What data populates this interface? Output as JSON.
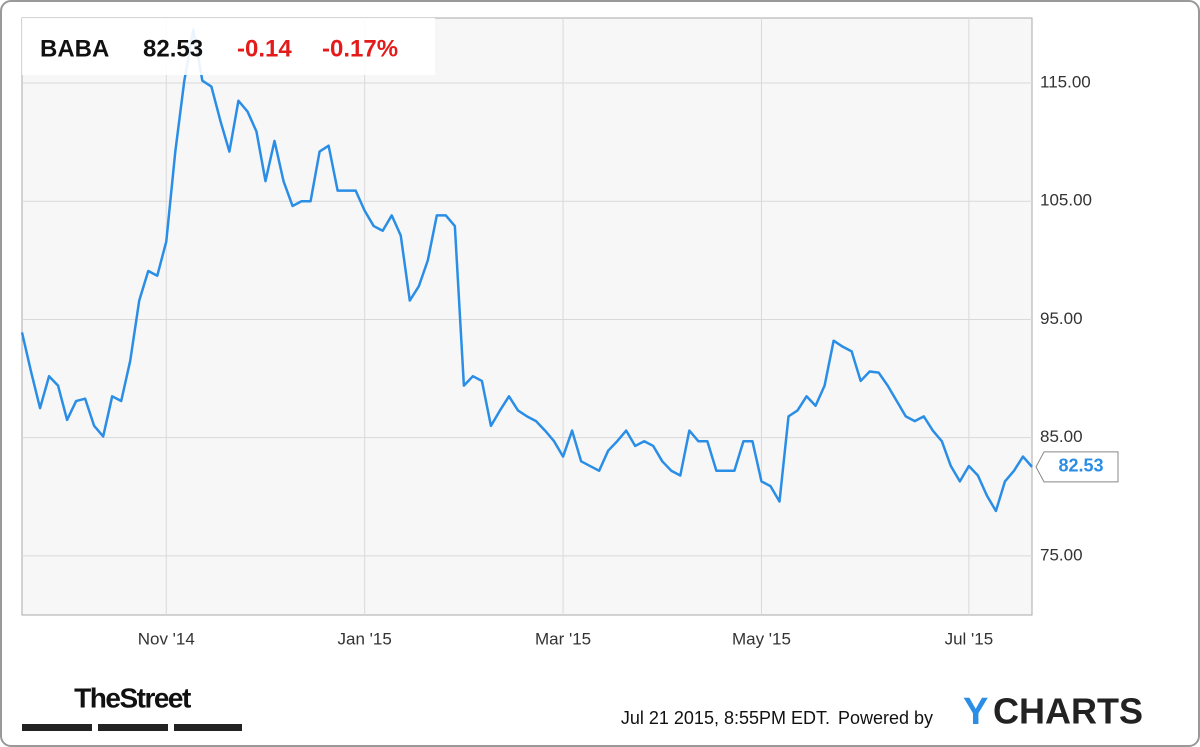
{
  "chart_data": {
    "type": "line",
    "header": {
      "ticker": "BABA",
      "price": "82.53",
      "change": "-0.14",
      "change_percent": "-0.17%"
    },
    "values": [
      93.9,
      90.6,
      87.5,
      90.2,
      89.4,
      86.5,
      88.1,
      88.3,
      86.0,
      85.1,
      88.5,
      88.1,
      91.5,
      96.6,
      99.1,
      98.7,
      101.6,
      109.2,
      115.2,
      119.5,
      115.2,
      114.7,
      111.8,
      109.2,
      113.5,
      112.6,
      110.9,
      106.7,
      110.1,
      106.7,
      104.6,
      105.0,
      105.0,
      109.2,
      109.7,
      105.9,
      105.9,
      105.9,
      104.2,
      102.9,
      102.5,
      103.8,
      102.1,
      96.6,
      97.8,
      100.0,
      103.8,
      103.8,
      102.9,
      89.4,
      90.2,
      89.8,
      86.0,
      87.3,
      88.5,
      87.3,
      86.8,
      86.4,
      85.6,
      84.7,
      83.4,
      85.6,
      83.0,
      82.6,
      82.2,
      83.9,
      84.7,
      85.6,
      84.3,
      84.7,
      84.3,
      83.0,
      82.2,
      81.8,
      85.6,
      84.7,
      84.7,
      82.2,
      82.2,
      82.2,
      84.7,
      84.7,
      81.3,
      80.9,
      79.6,
      86.8,
      87.3,
      88.5,
      87.7,
      89.4,
      93.2,
      92.7,
      92.3,
      89.8,
      90.6,
      90.5,
      89.4,
      88.1,
      86.8,
      86.4,
      86.8,
      85.6,
      84.7,
      82.6,
      81.3,
      82.6,
      81.8,
      80.1,
      78.8,
      81.3,
      82.2,
      83.4,
      82.53
    ],
    "color": "#2a8ee6",
    "xlim": [
      0,
      112
    ],
    "xticks": [
      {
        "value": 16,
        "label": "Nov '14"
      },
      {
        "value": 38,
        "label": "Jan '15"
      },
      {
        "value": 60,
        "label": "Mar '15"
      },
      {
        "value": 82,
        "label": "May '15"
      },
      {
        "value": 105,
        "label": "Jul '15"
      }
    ],
    "ylim": [
      70,
      120.5
    ],
    "yticks": [
      {
        "value": 75,
        "label": "75.00"
      },
      {
        "value": 85,
        "label": "85.00"
      },
      {
        "value": 95,
        "label": "95.00"
      },
      {
        "value": 105,
        "label": "105.00"
      },
      {
        "value": 115,
        "label": "115.00"
      }
    ],
    "grid": true,
    "footer": {
      "brand": "TheStreet",
      "timestamp": "Jul 21 2015, 8:55PM EDT.",
      "powered_by": "Powered by",
      "logo_y": "Y",
      "logo_rest": "CHARTS"
    }
  }
}
